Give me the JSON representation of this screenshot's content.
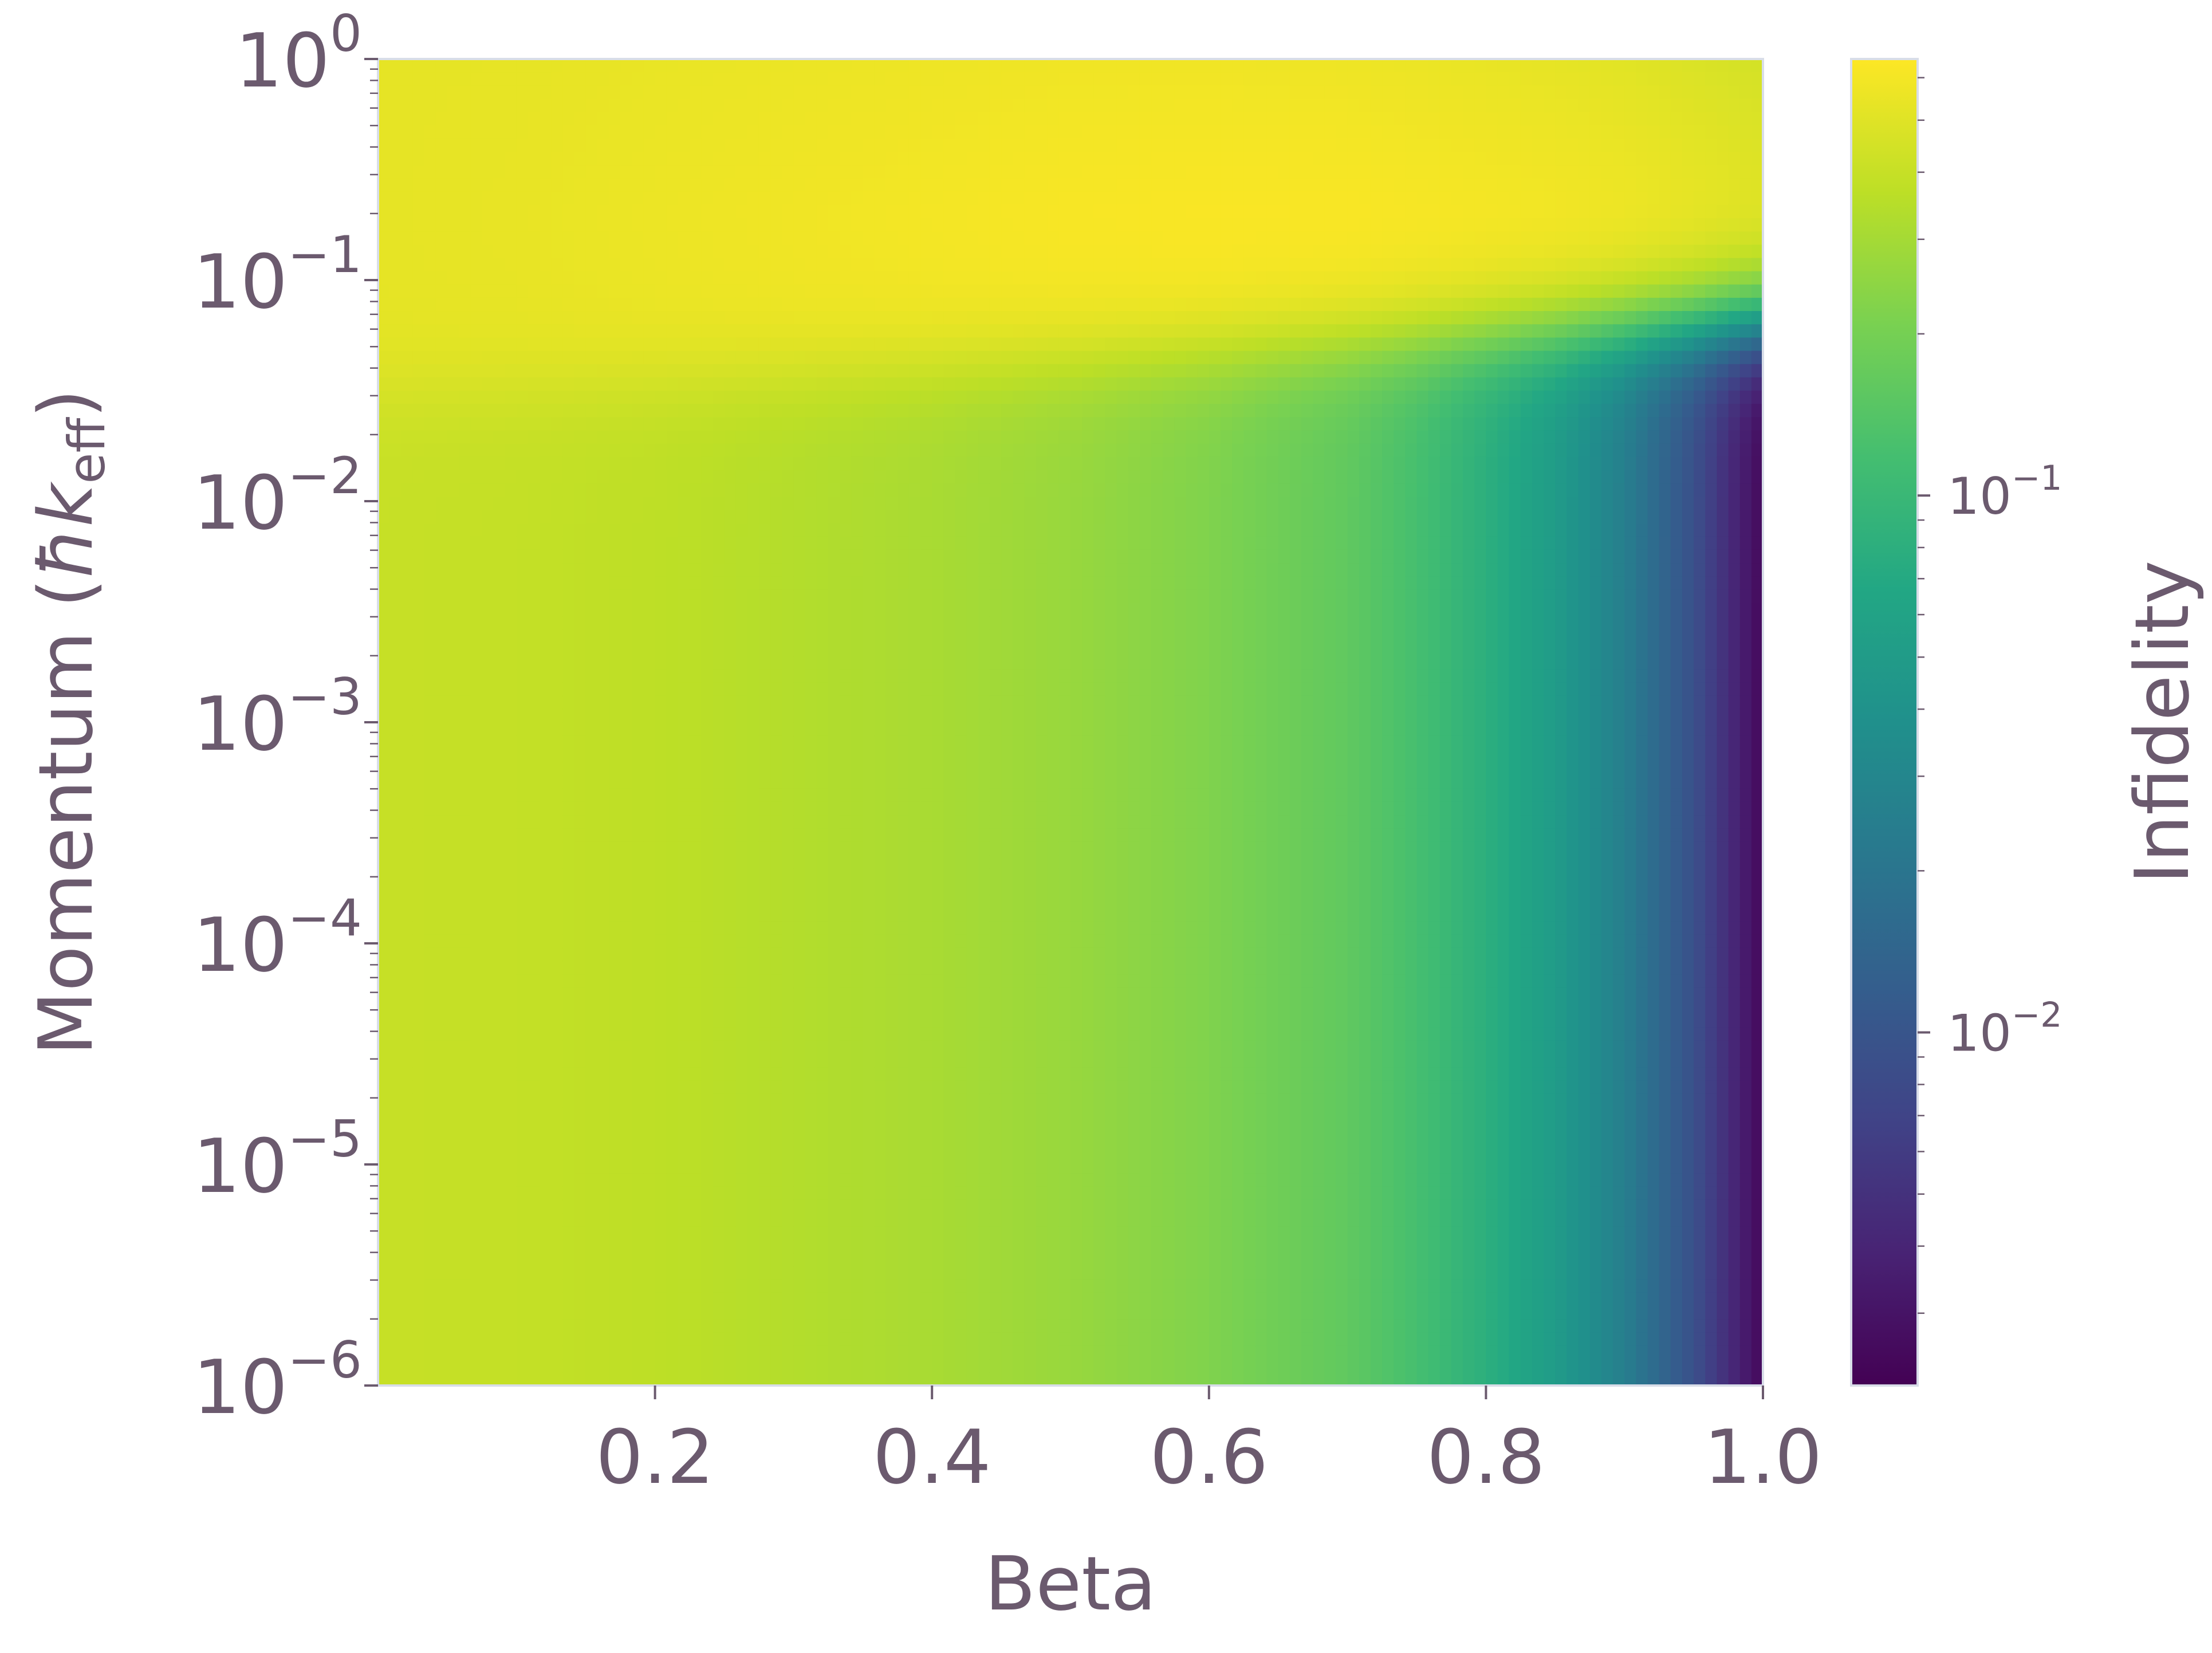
{
  "chart_data": {
    "type": "heatmap",
    "xlabel": "Beta",
    "ylabel_main": "Momentum (",
    "ylabel_hbar": "ħ",
    "ylabel_k": "k",
    "ylabel_sub": "eff",
    "ylabel_close": ")",
    "colorbar_label": "Infidelity",
    "x_scale": "linear",
    "y_scale": "log",
    "xlim": [
      0.0,
      1.0
    ],
    "ylim": [
      1e-06,
      1
    ],
    "x_ticks": [
      {
        "value": 0.2,
        "label": "0.2"
      },
      {
        "value": 0.4,
        "label": "0.4"
      },
      {
        "value": 0.6,
        "label": "0.6"
      },
      {
        "value": 0.8,
        "label": "0.8"
      },
      {
        "value": 1.0,
        "label": "1.0"
      }
    ],
    "y_ticks": [
      {
        "exp": 0,
        "base": "10",
        "sup": "0"
      },
      {
        "exp": -1,
        "base": "10",
        "sup": "−1"
      },
      {
        "exp": -2,
        "base": "10",
        "sup": "−2"
      },
      {
        "exp": -3,
        "base": "10",
        "sup": "−3"
      },
      {
        "exp": -4,
        "base": "10",
        "sup": "−4"
      },
      {
        "exp": -5,
        "base": "10",
        "sup": "−5"
      },
      {
        "exp": -6,
        "base": "10",
        "sup": "−6"
      }
    ],
    "colorbar": {
      "scale": "log",
      "colormap": "viridis",
      "range": [
        0.0022,
        0.65
      ],
      "ticks": [
        {
          "value": 0.1,
          "base": "10",
          "sup": "−1"
        },
        {
          "value": 0.01,
          "base": "10",
          "sup": "−2"
        }
      ]
    },
    "beta_columns": [
      0.0,
      0.1,
      0.2,
      0.3,
      0.4,
      0.5,
      0.6,
      0.7,
      0.75,
      0.8,
      0.85,
      0.9,
      0.95,
      0.98,
      1.0
    ],
    "infidelity_low_momentum": [
      0.4,
      0.39,
      0.37,
      0.34,
      0.31,
      0.27,
      0.22,
      0.16,
      0.12,
      0.08,
      0.05,
      0.025,
      0.009,
      0.004,
      0.0025
    ],
    "infidelity_by_beta_at_momentum_0_2": [
      0.53,
      0.54,
      0.56,
      0.58,
      0.6,
      0.62,
      0.63,
      0.63,
      0.62,
      0.61,
      0.6,
      0.58,
      0.55,
      0.53,
      0.52
    ],
    "colors": {
      "text": "#6b5a6e",
      "spine": "#d8dde8"
    }
  }
}
